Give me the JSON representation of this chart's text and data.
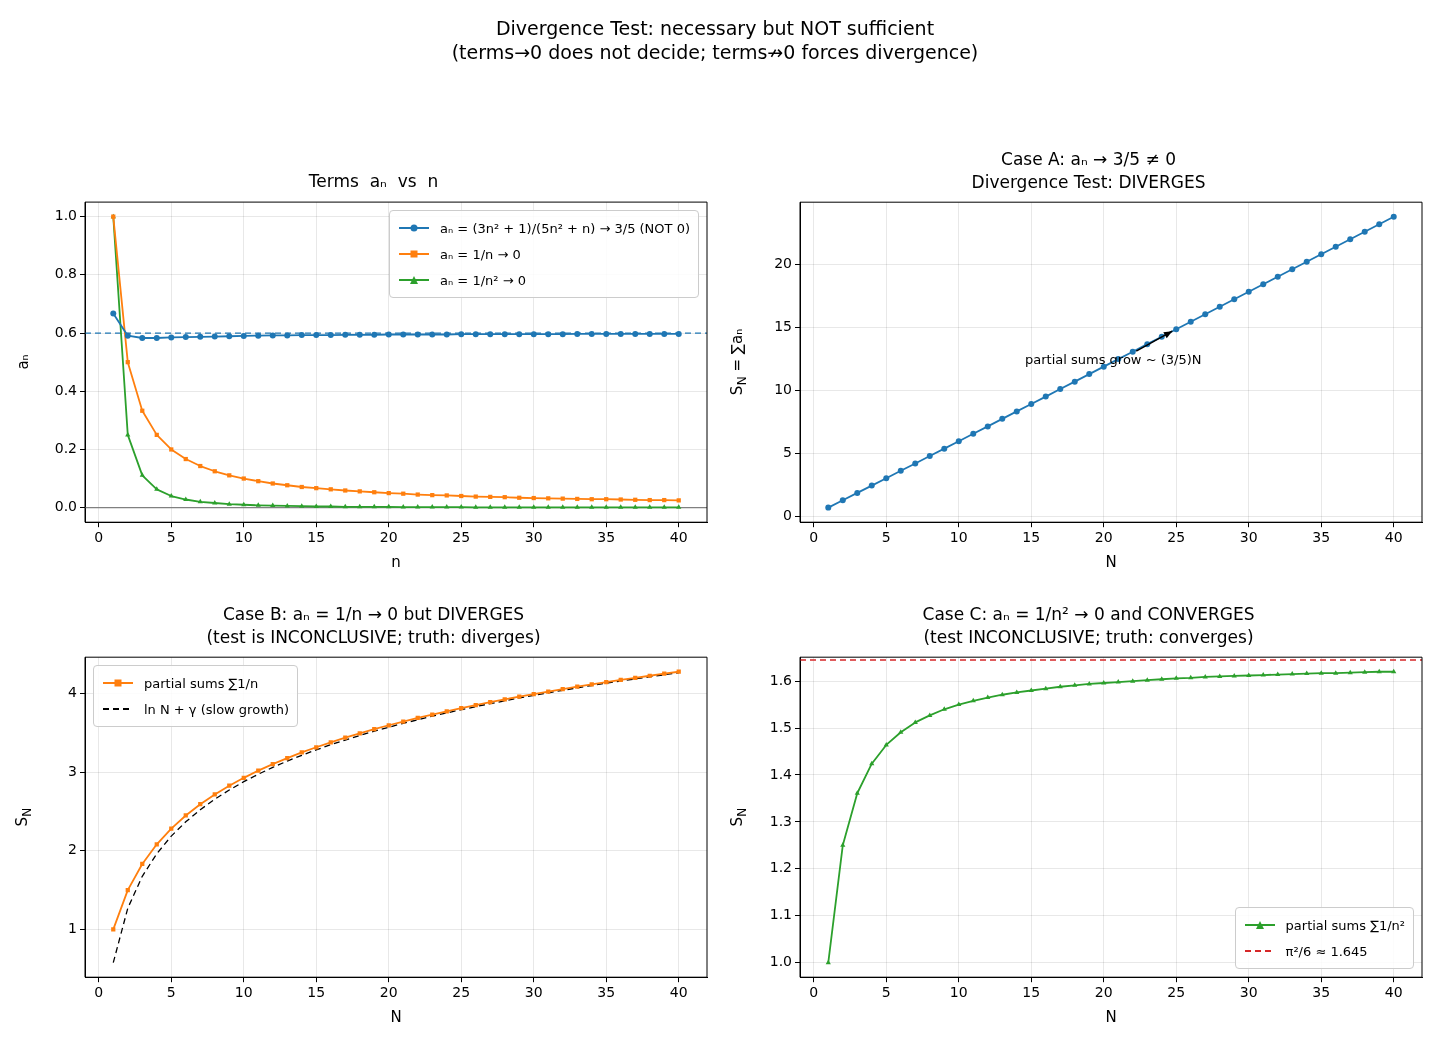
{
  "chart_data": [
    {
      "type": "other",
      "title": "Divergence Test: necessary but NOT sufficient\n(terms→0 does not decide; terms↛0 forces divergence)"
    },
    {
      "type": "line",
      "title": "Terms  aₙ  vs  n",
      "xlabel": "n",
      "ylabel": "aₙ",
      "x": [
        1,
        2,
        3,
        4,
        5,
        6,
        7,
        8,
        9,
        10,
        11,
        12,
        13,
        14,
        15,
        16,
        17,
        18,
        19,
        20,
        21,
        22,
        23,
        24,
        25,
        26,
        27,
        28,
        29,
        30,
        31,
        32,
        33,
        34,
        35,
        36,
        37,
        38,
        39,
        40
      ],
      "xlim": [
        -0.95,
        41.95
      ],
      "ylim": [
        -0.05,
        1.05
      ],
      "xticks": [
        0,
        5,
        10,
        15,
        20,
        25,
        30,
        35,
        40
      ],
      "yticks": [
        {
          "value": 0,
          "label": "0.0"
        },
        {
          "value": 0.2,
          "label": "0.2"
        },
        {
          "value": 0.4,
          "label": "0.4"
        },
        {
          "value": 0.6,
          "label": "0.6"
        },
        {
          "value": 0.8,
          "label": "0.8"
        },
        {
          "value": 1,
          "label": "1.0"
        }
      ],
      "grid": true,
      "legend": "top right",
      "series": [
        {
          "name": "aₙ = (3n² + 1)/(5n² + n) → 3/5 (NOT 0)",
          "color": "#1f77b4",
          "marker": "circle",
          "line_style": "solid",
          "values": [
            0.667,
            0.591,
            0.583,
            0.583,
            0.585,
            0.586,
            0.587,
            0.588,
            0.589,
            0.59,
            0.591,
            0.592,
            0.592,
            0.593,
            0.593,
            0.593,
            0.594,
            0.594,
            0.594,
            0.595,
            0.595,
            0.595,
            0.595,
            0.595,
            0.596,
            0.596,
            0.596,
            0.596,
            0.596,
            0.596,
            0.596,
            0.596,
            0.597,
            0.597,
            0.597,
            0.597,
            0.597,
            0.597,
            0.597,
            0.597
          ]
        },
        {
          "name": "aₙ = 1/n → 0",
          "color": "#ff7f0e",
          "marker": "square",
          "line_style": "solid",
          "values": [
            1,
            0.5,
            0.333,
            0.25,
            0.2,
            0.167,
            0.143,
            0.125,
            0.111,
            0.1,
            0.091,
            0.083,
            0.077,
            0.071,
            0.067,
            0.063,
            0.059,
            0.056,
            0.053,
            0.05,
            0.048,
            0.045,
            0.043,
            0.042,
            0.04,
            0.038,
            0.037,
            0.036,
            0.034,
            0.033,
            0.032,
            0.031,
            0.03,
            0.029,
            0.029,
            0.028,
            0.027,
            0.026,
            0.026,
            0.025
          ]
        },
        {
          "name": "aₙ = 1/n² → 0",
          "color": "#2ca02c",
          "marker": "triangle",
          "line_style": "solid",
          "values": [
            1,
            0.25,
            0.111,
            0.063,
            0.04,
            0.028,
            0.02,
            0.016,
            0.012,
            0.01,
            0.008,
            0.007,
            0.006,
            0.005,
            0.004,
            0.004,
            0.003,
            0.003,
            0.003,
            0.003,
            0.002,
            0.002,
            0.002,
            0.002,
            0.002,
            0.001,
            0.001,
            0.001,
            0.001,
            0.001,
            0.001,
            0.001,
            0.001,
            0.001,
            0.001,
            0.001,
            0.001,
            0.001,
            0.001,
            0.001
          ]
        }
      ],
      "ref_lines": [
        {
          "axis": "y",
          "value": 0.6,
          "color": "#1f77b4",
          "line_style": "dashed"
        },
        {
          "axis": "y",
          "value": 0,
          "color": "#808080",
          "line_style": "solid"
        }
      ]
    },
    {
      "type": "line",
      "title": "Case A: aₙ → 3/5 ≠ 0\nDivergence Test: DIVERGES",
      "xlabel": "N",
      "ylabel": "S$_{N}$ = ∑aₙ",
      "x": [
        1,
        2,
        3,
        4,
        5,
        6,
        7,
        8,
        9,
        10,
        11,
        12,
        13,
        14,
        15,
        16,
        17,
        18,
        19,
        20,
        21,
        22,
        23,
        24,
        25,
        26,
        27,
        28,
        29,
        30,
        31,
        32,
        33,
        34,
        35,
        36,
        37,
        38,
        39,
        40
      ],
      "xlim": [
        -0.95,
        41.95
      ],
      "ylim": [
        -0.49,
        24.96
      ],
      "xticks": [
        0,
        5,
        10,
        15,
        20,
        25,
        30,
        35,
        40
      ],
      "yticks": [
        0,
        5,
        10,
        15,
        20
      ],
      "grid": true,
      "series": [
        {
          "color": "#1f77b4",
          "marker": "circle",
          "line_style": "solid",
          "values": [
            0.67,
            1.26,
            1.84,
            2.42,
            3.01,
            3.6,
            4.18,
            4.77,
            5.36,
            5.95,
            6.54,
            7.13,
            7.73,
            8.32,
            8.91,
            9.5,
            10.1,
            10.69,
            11.29,
            11.88,
            12.48,
            13.07,
            13.67,
            14.26,
            14.86,
            15.45,
            16.05,
            16.64,
            17.24,
            17.84,
            18.43,
            19.03,
            19.63,
            20.22,
            20.82,
            21.42,
            22.01,
            22.61,
            23.21,
            23.8
          ]
        }
      ],
      "annotations": [
        {
          "text": "partial sums grow ~ (3/5)N",
          "x": 25,
          "y": 14.86
        }
      ]
    },
    {
      "type": "line",
      "title": "Case B: aₙ = 1/n → 0 but DIVERGES\n(test is INCONCLUSIVE; truth: diverges)",
      "xlabel": "N",
      "ylabel": "S$_{N}$",
      "x": [
        1,
        2,
        3,
        4,
        5,
        6,
        7,
        8,
        9,
        10,
        11,
        12,
        13,
        14,
        15,
        16,
        17,
        18,
        19,
        20,
        21,
        22,
        23,
        24,
        25,
        26,
        27,
        28,
        29,
        30,
        31,
        32,
        33,
        34,
        35,
        36,
        37,
        38,
        39,
        40
      ],
      "xlim": [
        -0.95,
        41.95
      ],
      "ylim": [
        0.392,
        4.464
      ],
      "xticks": [
        0,
        5,
        10,
        15,
        20,
        25,
        30,
        35,
        40
      ],
      "yticks": [
        1,
        2,
        3,
        4
      ],
      "grid": true,
      "legend": "top left",
      "series": [
        {
          "name": "partial sums ∑1/n",
          "color": "#ff7f0e",
          "marker": "square",
          "line_style": "solid",
          "values": [
            1,
            1.5,
            1.833,
            2.083,
            2.283,
            2.45,
            2.593,
            2.718,
            2.829,
            2.929,
            3.02,
            3.103,
            3.18,
            3.252,
            3.318,
            3.381,
            3.44,
            3.495,
            3.548,
            3.598,
            3.645,
            3.691,
            3.734,
            3.776,
            3.816,
            3.854,
            3.891,
            3.927,
            3.962,
            3.995,
            4.027,
            4.058,
            4.089,
            4.118,
            4.147,
            4.175,
            4.202,
            4.228,
            4.254,
            4.279
          ]
        },
        {
          "name": "ln N + γ (slow growth)",
          "color": "#000000",
          "marker": "none",
          "line_style": "dashed",
          "values": [
            0.577,
            1.27,
            1.676,
            1.963,
            2.187,
            2.369,
            2.523,
            2.657,
            2.774,
            2.88,
            2.975,
            3.062,
            3.142,
            3.216,
            3.285,
            3.35,
            3.41,
            3.468,
            3.522,
            3.573,
            3.622,
            3.668,
            3.713,
            3.755,
            3.796,
            3.835,
            3.873,
            3.909,
            3.945,
            3.978,
            4.011,
            4.043,
            4.074,
            4.104,
            4.133,
            4.161,
            4.188,
            4.215,
            4.241,
            4.266
          ]
        }
      ]
    },
    {
      "type": "line",
      "title": "Case C: aₙ = 1/n² → 0 and CONVERGES\n(test INCONCLUSIVE; truth: converges)",
      "xlabel": "N",
      "ylabel": "S$_{N}$",
      "x": [
        1,
        2,
        3,
        4,
        5,
        6,
        7,
        8,
        9,
        10,
        11,
        12,
        13,
        14,
        15,
        16,
        17,
        18,
        19,
        20,
        21,
        22,
        23,
        24,
        25,
        26,
        27,
        28,
        29,
        30,
        31,
        32,
        33,
        34,
        35,
        36,
        37,
        38,
        39,
        40
      ],
      "xlim": [
        -0.95,
        41.95
      ],
      "ylim": [
        0.969,
        1.651
      ],
      "xticks": [
        0,
        5,
        10,
        15,
        20,
        25,
        30,
        35,
        40
      ],
      "yticks": [
        {
          "value": 1,
          "label": "1.0"
        },
        {
          "value": 1.1,
          "label": "1.1"
        },
        {
          "value": 1.2,
          "label": "1.2"
        },
        {
          "value": 1.3,
          "label": "1.3"
        },
        {
          "value": 1.4,
          "label": "1.4"
        },
        {
          "value": 1.5,
          "label": "1.5"
        },
        {
          "value": 1.6,
          "label": "1.6"
        }
      ],
      "grid": true,
      "legend": "bottom right",
      "series": [
        {
          "name": "partial sums ∑1/n²",
          "color": "#2ca02c",
          "marker": "triangle",
          "line_style": "solid",
          "values": [
            1,
            1.25,
            1.361,
            1.424,
            1.464,
            1.491,
            1.512,
            1.527,
            1.54,
            1.55,
            1.558,
            1.565,
            1.571,
            1.576,
            1.58,
            1.584,
            1.588,
            1.591,
            1.594,
            1.596,
            1.598,
            1.6,
            1.602,
            1.604,
            1.606,
            1.607,
            1.609,
            1.61,
            1.611,
            1.612,
            1.613,
            1.614,
            1.615,
            1.616,
            1.617,
            1.617,
            1.618,
            1.619,
            1.62,
            1.62
          ]
        }
      ],
      "ref_lines": [
        {
          "axis": "y",
          "value": 1.645,
          "label": "π²/6 ≈ 1.645",
          "color": "#d62728",
          "line_style": "dashed"
        }
      ]
    }
  ]
}
